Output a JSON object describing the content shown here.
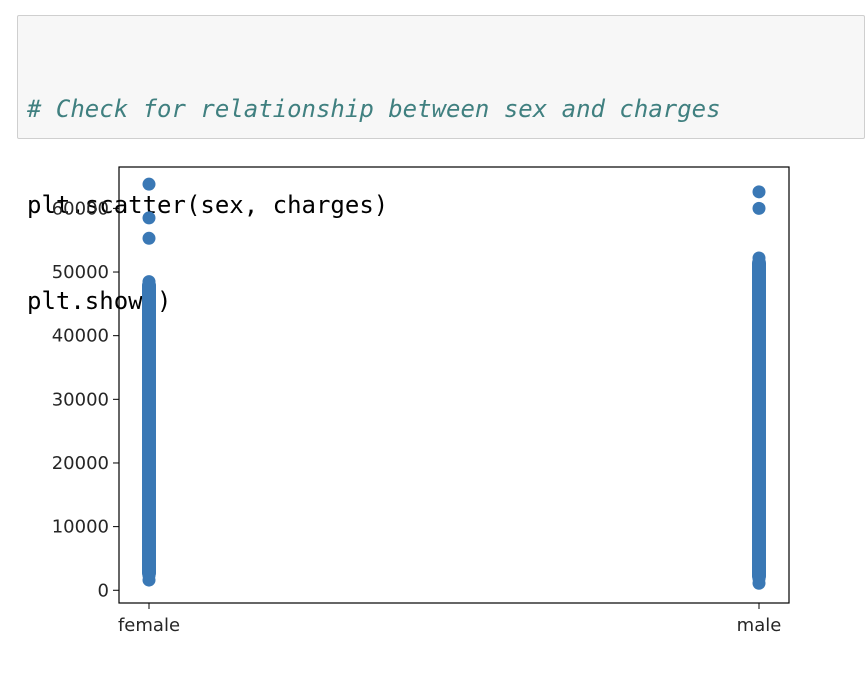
{
  "code_cell": {
    "lines": [
      {
        "text": "# Check for relationship between sex and charges",
        "kind": "comment"
      },
      {
        "text": "plt.scatter(sex, charges)",
        "kind": "code"
      },
      {
        "text": "plt.show()",
        "kind": "code"
      }
    ]
  },
  "chart_data": {
    "type": "scatter",
    "title": "",
    "xlabel": "",
    "ylabel": "",
    "categories": [
      "female",
      "male"
    ],
    "ylim": [
      -2000,
      66500
    ],
    "yticks": [
      0,
      10000,
      20000,
      30000,
      40000,
      50000,
      60000
    ],
    "ytick_labels": [
      "0",
      "10000",
      "20000",
      "30000",
      "40000",
      "50000",
      "60000"
    ],
    "marker_color": "#3a78b5",
    "grid": false,
    "series": [
      {
        "values": [
          {
            "x": "female",
            "ymin": 1600,
            "ymax": 49000,
            "dense": true
          },
          {
            "x": "female",
            "y": 63800
          },
          {
            "x": "female",
            "y": 58500
          },
          {
            "x": "female",
            "y": 55300
          },
          {
            "x": "male",
            "ymin": 1100,
            "ymax": 52500,
            "dense": true
          },
          {
            "x": "male",
            "y": 62600
          },
          {
            "x": "male",
            "y": 60000
          }
        ]
      }
    ]
  }
}
